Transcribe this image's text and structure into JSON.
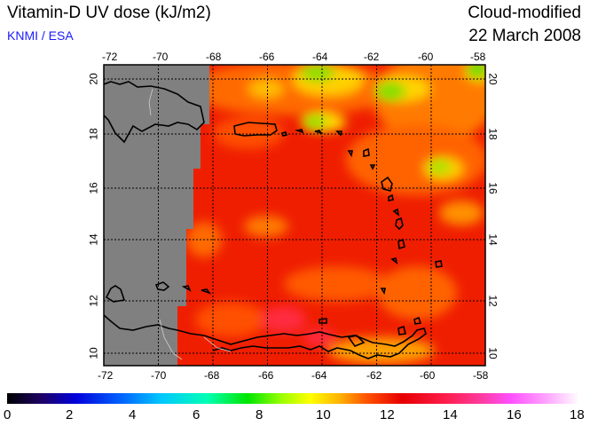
{
  "header": {
    "title": "Vitamin-D UV dose (kJ/m2)",
    "credit": "KNMI / ESA",
    "mode": "Cloud-modified",
    "date": "22 March 2008"
  },
  "map": {
    "lon_ticks": [
      "-72",
      "-70",
      "-68",
      "-66",
      "-64",
      "-62",
      "-60",
      "-58"
    ],
    "lat_ticks": [
      "10",
      "12",
      "14",
      "16",
      "18",
      "20"
    ],
    "grid": true,
    "no_data_color": "#808080",
    "coast_color": "#000000"
  },
  "colorbar": {
    "ticks": [
      "0",
      "2",
      "4",
      "6",
      "8",
      "10",
      "12",
      "14",
      "16",
      "18"
    ],
    "colors": [
      "#000000",
      "#1e0064",
      "#0000dc",
      "#0064ff",
      "#00c8ff",
      "#00ffb4",
      "#00e600",
      "#9bff00",
      "#ffff00",
      "#ffb400",
      "#ff5000",
      "#e60000",
      "#ff1e50",
      "#ff3ca0",
      "#ff50ff",
      "#ffa0ff",
      "#ffe6ff",
      "#ffffff"
    ]
  }
}
